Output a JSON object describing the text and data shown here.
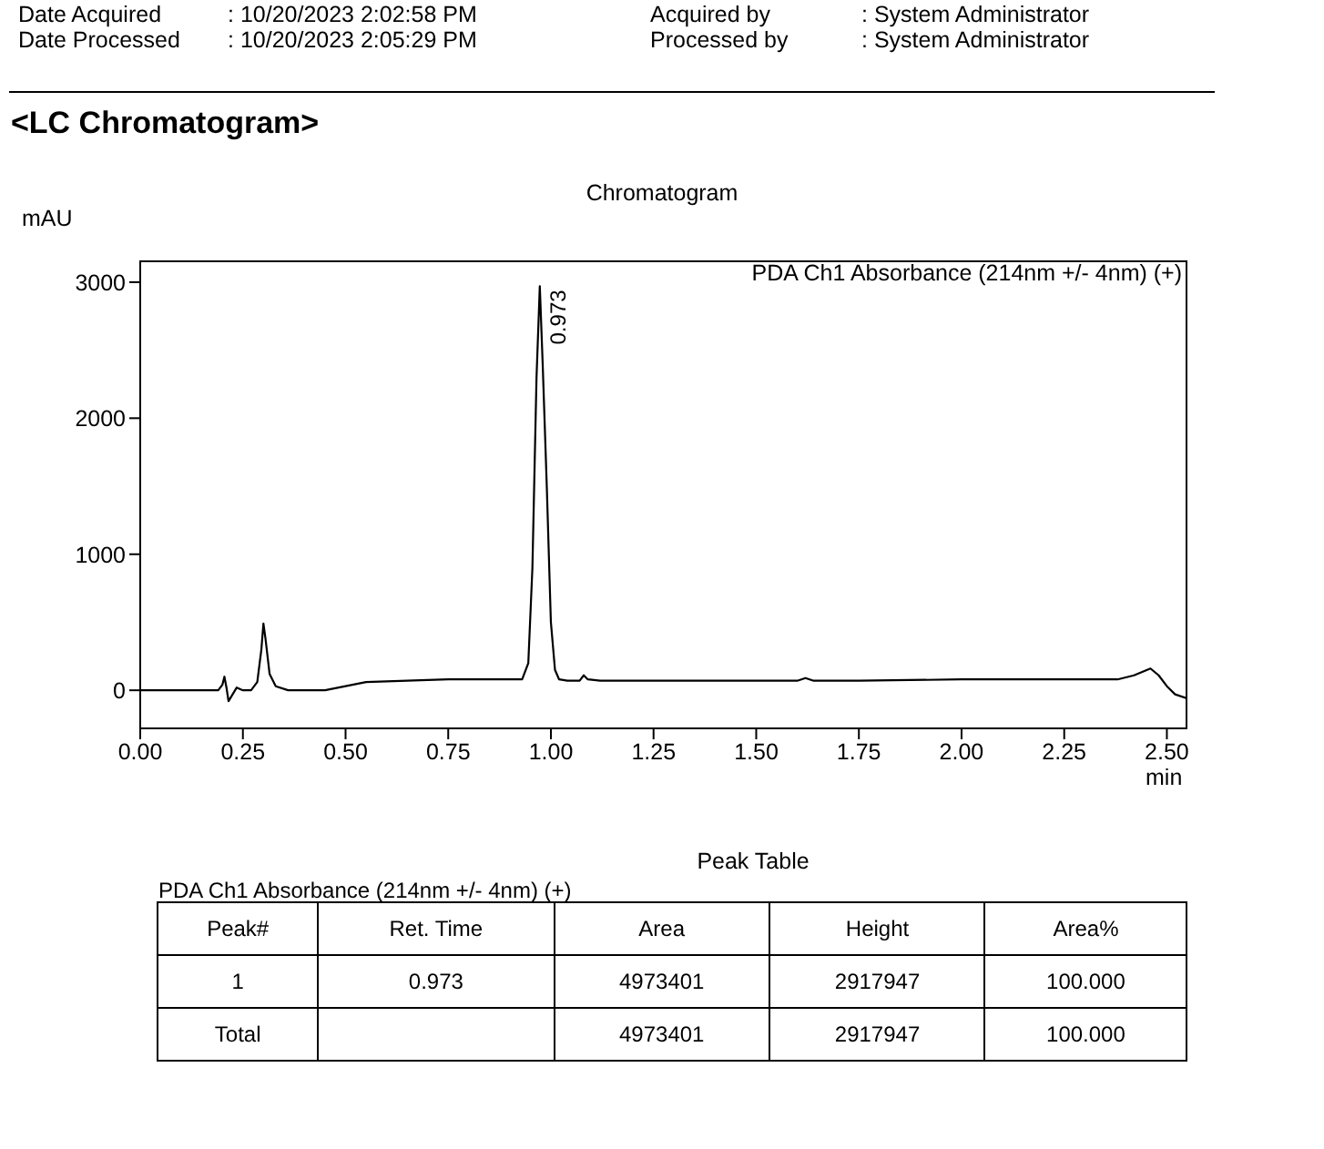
{
  "chart_data": {
    "type": "line",
    "title": "Chromatogram",
    "xlabel": "min",
    "ylabel": "mAU",
    "x": [
      0,
      0.1,
      0.19,
      0.2,
      0.205,
      0.21,
      0.215,
      0.225,
      0.235,
      0.25,
      0.27,
      0.285,
      0.295,
      0.3,
      0.305,
      0.315,
      0.33,
      0.36,
      0.4,
      0.45,
      0.5,
      0.55,
      0.65,
      0.75,
      0.85,
      0.93,
      0.945,
      0.955,
      0.965,
      0.973,
      0.98,
      0.99,
      1.0,
      1.01,
      1.02,
      1.04,
      1.07,
      1.08,
      1.09,
      1.12,
      1.25,
      1.5,
      1.6,
      1.62,
      1.64,
      1.75,
      2.0,
      2.25,
      2.38,
      2.42,
      2.46,
      2.48,
      2.5,
      2.52,
      2.55
    ],
    "series": [
      {
        "color": "#000000",
        "values": [
          0,
          0,
          0,
          40,
          100,
          20,
          -80,
          -30,
          20,
          0,
          0,
          60,
          300,
          490,
          380,
          120,
          30,
          0,
          0,
          0,
          30,
          60,
          70,
          80,
          80,
          80,
          200,
          900,
          2300,
          2970,
          2400,
          1500,
          500,
          150,
          80,
          70,
          70,
          110,
          80,
          70,
          70,
          70,
          70,
          90,
          70,
          70,
          80,
          80,
          80,
          110,
          160,
          110,
          30,
          -30,
          -60
        ]
      }
    ],
    "xlim": [
      0,
      2.55
    ],
    "xticks": [
      {
        "value": 0,
        "label": "0.00"
      },
      {
        "value": 0.25,
        "label": "0.25"
      },
      {
        "value": 0.5,
        "label": "0.50"
      },
      {
        "value": 0.75,
        "label": "0.75"
      },
      {
        "value": 1,
        "label": "1.00"
      },
      {
        "value": 1.25,
        "label": "1.25"
      },
      {
        "value": 1.5,
        "label": "1.50"
      },
      {
        "value": 1.75,
        "label": "1.75"
      },
      {
        "value": 2,
        "label": "2.00"
      },
      {
        "value": 2.25,
        "label": "2.25"
      },
      {
        "value": 2.5,
        "label": "2.50"
      }
    ],
    "ylim": [
      -280,
      3160
    ],
    "yticks": [
      0,
      1000,
      2000,
      3000
    ],
    "grid": false,
    "marker": "none",
    "line_style": "solid",
    "annotations": [
      "Date Acquired",
      ": 10/20/2023 2:02:58 PM",
      "Acquired by",
      ": System Administrator",
      "Date Processed",
      ": 10/20/2023 2:05:29 PM",
      "Processed by",
      ": System Administrator",
      "<LC Chromatogram>",
      "PDA Ch1 Absorbance (214nm +/- 4nm) (+)",
      {
        "text": "0.973",
        "x": 0.973,
        "y": 2970
      },
      "Peak Table",
      "PDA Ch1 Absorbance (214nm +/- 4nm) (+)",
      "Peak#",
      "Ret. Time",
      "Area",
      "Height",
      "Area%",
      "1",
      "0.973",
      "4973401",
      "2917947",
      "100.000",
      "Total",
      "4973401",
      "2917947",
      "100.000"
    ]
  }
}
